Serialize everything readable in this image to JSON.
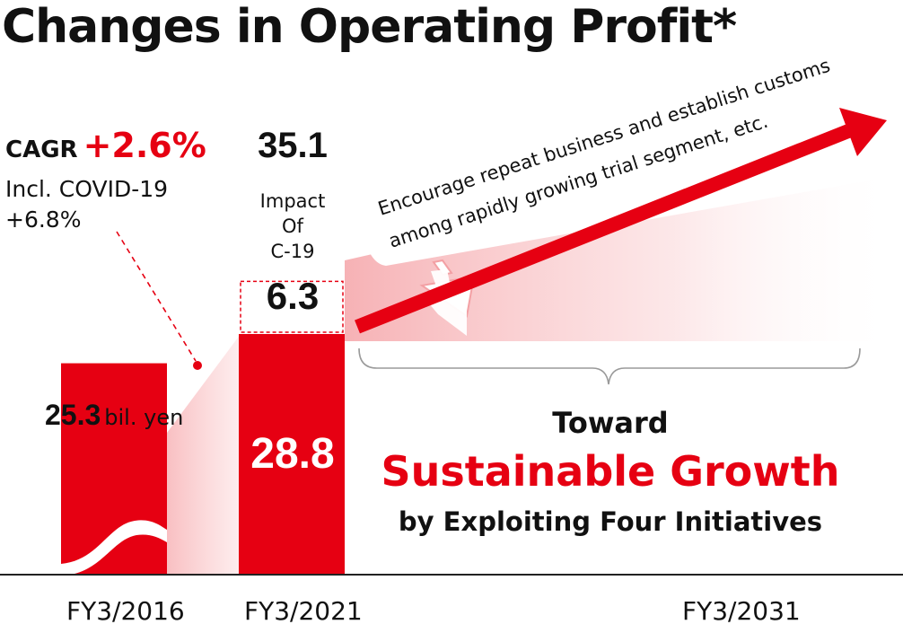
{
  "title": "Changes in Operating Profit*",
  "cagr": {
    "label": "CAGR",
    "value": "+2.6%"
  },
  "covid": {
    "label": "Incl. COVID-19",
    "value": "+6.8%"
  },
  "annotation": {
    "line1": "Encourage repeat business and establish customs",
    "line2": "among rapidly growing trial segment, etc."
  },
  "tagline": {
    "toward": "Toward",
    "growth": "Sustainable Growth",
    "initiatives": "by Exploiting Four Initiatives"
  },
  "colors": {
    "accent": "#e60012",
    "text": "#111111",
    "fade": "#f8c4c6"
  },
  "chart_data": {
    "type": "bar",
    "categories": [
      "FY3/2016",
      "FY3/2021",
      "FY3/2031"
    ],
    "series": [
      {
        "name": "",
        "values": [
          25.3,
          28.8,
          null
        ]
      },
      {
        "name": "Impact Of C-19",
        "values": [
          0,
          6.3,
          null
        ]
      }
    ],
    "value_labels": {
      "fy2016": "25.3",
      "fy2016_unit": "bil. yen",
      "fy2021": "28.8",
      "impact_text": [
        "Impact",
        "Of",
        "C-19"
      ],
      "impact": "6.3",
      "total": "35.1"
    },
    "ylim": [
      0,
      37
    ],
    "stacked": true
  }
}
